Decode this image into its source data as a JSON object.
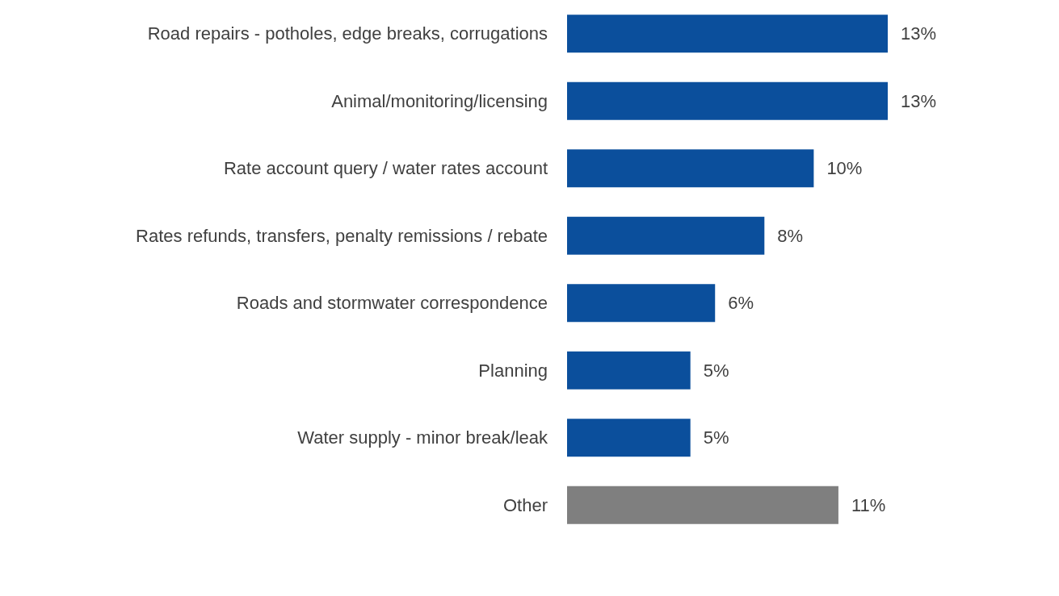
{
  "chart_data": {
    "type": "bar",
    "orientation": "horizontal",
    "categories": [
      "Road repairs - potholes, edge breaks, corrugations",
      "Animal/monitoring/licensing",
      "Rate account query / water rates account",
      "Rates refunds, transfers, penalty remissions / rebate",
      "Roads and stormwater correspondence",
      "Planning",
      "Water supply - minor break/leak",
      "Other"
    ],
    "values": [
      13,
      13,
      10,
      8,
      6,
      5,
      5,
      11
    ],
    "value_labels": [
      "13%",
      "13%",
      "10%",
      "8%",
      "6%",
      "5%",
      "5%",
      "11%"
    ],
    "colors": [
      "#0b4f9c",
      "#0b4f9c",
      "#0b4f9c",
      "#0b4f9c",
      "#0b4f9c",
      "#0b4f9c",
      "#0b4f9c",
      "#7f7f7f"
    ]
  }
}
